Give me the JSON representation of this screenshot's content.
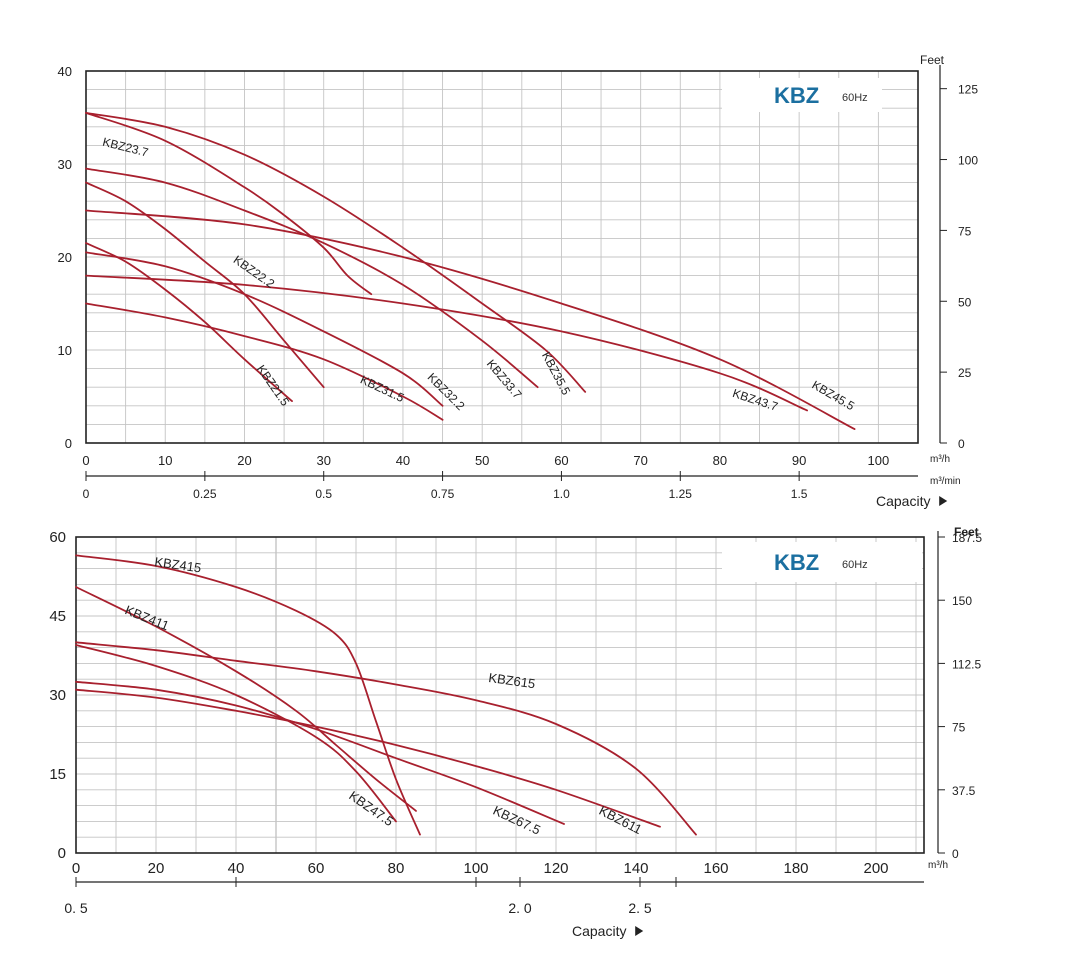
{
  "colors": {
    "curve": "#a8202e",
    "brand": "#1b6fa0",
    "grid": "#c4c4c4",
    "frame": "#222222"
  },
  "chart_data": [
    {
      "type": "line",
      "brand": "KBZ",
      "frequency": "60Hz",
      "xlim": [
        0,
        105
      ],
      "ylim": [
        0,
        40
      ],
      "yticks": [
        "0",
        "10",
        "20",
        "30",
        "40"
      ],
      "xticks": [
        "0",
        "10",
        "20",
        "30",
        "40",
        "50",
        "60",
        "70",
        "80",
        "90",
        "100"
      ],
      "x_unit": "m³/h",
      "x2_unit": "m³/min",
      "x2_ticks": [
        "0",
        "0.25",
        "0.5",
        "0.75",
        "1.0",
        "1.25",
        "1.5"
      ],
      "x2_tick_values": [
        0,
        0.25,
        0.5,
        0.75,
        1.0,
        1.25,
        1.5
      ],
      "xlabel": "Capacity",
      "y2_unit": "Feet",
      "y2_ticks": [
        "0",
        "25",
        "50",
        "75",
        "100",
        "125"
      ],
      "y2_tick_values": [
        0,
        25,
        50,
        75,
        100,
        125
      ],
      "series": [
        {
          "name": "KBZ23.7",
          "x": [
            0,
            10,
            20,
            25,
            30,
            33,
            36
          ],
          "y": [
            35.5,
            32.5,
            27.5,
            24.5,
            21,
            18,
            16
          ]
        },
        {
          "name": "KBZ22.2",
          "x": [
            0,
            5,
            10,
            15,
            20,
            25,
            30
          ],
          "y": [
            28,
            26,
            23,
            19.5,
            16,
            11,
            6
          ]
        },
        {
          "name": "KBZ21.5",
          "x": [
            0,
            5,
            10,
            15,
            20,
            26
          ],
          "y": [
            21.5,
            19.5,
            16.5,
            13,
            9,
            4.5
          ]
        },
        {
          "name": "KBZ31.5",
          "x": [
            0,
            10,
            20,
            30,
            40,
            45
          ],
          "y": [
            15,
            13.5,
            11.5,
            9,
            5,
            2.5
          ]
        },
        {
          "name": "KBZ32.2",
          "x": [
            0,
            10,
            20,
            30,
            40,
            45
          ],
          "y": [
            20.5,
            19,
            16,
            12,
            7.5,
            4
          ]
        },
        {
          "name": "KBZ33.7",
          "x": [
            0,
            10,
            20,
            30,
            40,
            50,
            57
          ],
          "y": [
            29.5,
            28,
            25,
            21.5,
            17,
            11,
            6
          ]
        },
        {
          "name": "KBZ35.5",
          "x": [
            0,
            10,
            20,
            30,
            40,
            50,
            58,
            63
          ],
          "y": [
            35.5,
            34,
            31,
            26.5,
            21,
            15,
            10,
            5.5
          ]
        },
        {
          "name": "KBZ43.7",
          "x": [
            0,
            20,
            40,
            60,
            80,
            91
          ],
          "y": [
            18,
            17,
            15,
            12,
            7.5,
            3.5
          ]
        },
        {
          "name": "KBZ45.5",
          "x": [
            0,
            20,
            40,
            60,
            80,
            97
          ],
          "y": [
            25,
            23.5,
            20,
            15,
            9,
            1.5
          ]
        }
      ],
      "curve_labels": [
        {
          "text": "KBZ23.7",
          "series": "KBZ23.7",
          "at_x": 2,
          "at_y": 32,
          "angle": 14
        },
        {
          "text": "KBZ22.2",
          "series": "KBZ22.2",
          "at_x": 18.5,
          "at_y": 19.5,
          "angle": 35
        },
        {
          "text": "KBZ21.5",
          "series": "KBZ21.5",
          "at_x": 21.5,
          "at_y": 8,
          "angle": 55
        },
        {
          "text": "KBZ31.5",
          "series": "KBZ31.5",
          "at_x": 34.5,
          "at_y": 6.5,
          "angle": 25
        },
        {
          "text": "KBZ32.2",
          "series": "KBZ32.2",
          "at_x": 43,
          "at_y": 7,
          "angle": 45
        },
        {
          "text": "KBZ33.7",
          "series": "KBZ33.7",
          "at_x": 50.5,
          "at_y": 8.5,
          "angle": 50
        },
        {
          "text": "KBZ35.5",
          "series": "KBZ35.5",
          "at_x": 57.5,
          "at_y": 9.5,
          "angle": 62
        },
        {
          "text": "KBZ43.7",
          "series": "KBZ43.7",
          "at_x": 81.5,
          "at_y": 5,
          "angle": 18
        },
        {
          "text": "KBZ45.5",
          "series": "KBZ45.5",
          "at_x": 91.5,
          "at_y": 6,
          "angle": 30
        }
      ]
    },
    {
      "type": "line",
      "brand": "KBZ",
      "frequency": "60Hz",
      "xlim": [
        0,
        212
      ],
      "ylim": [
        0,
        60
      ],
      "yticks": [
        "0",
        "15",
        "30",
        "45",
        "60"
      ],
      "xticks": [
        "0",
        "20",
        "40",
        "60",
        "80",
        "100",
        "120",
        "140",
        "160",
        "180",
        "200"
      ],
      "x_unit": "m³/h",
      "x2_ticks": [
        "0. 5",
        "2. 0",
        "2. 5"
      ],
      "x2_tick_values": [
        0,
        111,
        141
      ],
      "xlabel": "Capacity",
      "y2_unit": "Feet",
      "y2_ticks": [
        "0",
        "37.5",
        "75",
        "112.5",
        "150",
        "187.5"
      ],
      "y2_tick_values": [
        0,
        37.5,
        75,
        112.5,
        150,
        187.5
      ],
      "series": [
        {
          "name": "KBZ415",
          "x": [
            0,
            20,
            40,
            55,
            65,
            70,
            75,
            80,
            86
          ],
          "y": [
            56.5,
            54.5,
            50.5,
            46,
            41.5,
            36,
            25,
            14,
            3.5
          ]
        },
        {
          "name": "KBZ411",
          "x": [
            0,
            20,
            40,
            55,
            65,
            75,
            85
          ],
          "y": [
            50.5,
            43,
            34.5,
            27,
            20.5,
            14,
            8
          ]
        },
        {
          "name": "KBZ47.5",
          "x": [
            0,
            20,
            40,
            60,
            70,
            80
          ],
          "y": [
            39.5,
            35.5,
            30,
            22,
            15.5,
            6
          ]
        },
        {
          "name": "KBZ67.5",
          "x": [
            0,
            20,
            40,
            60,
            80,
            100,
            122
          ],
          "y": [
            32.5,
            31,
            28,
            23.5,
            18,
            12.5,
            5.5
          ]
        },
        {
          "name": "KBZ611",
          "x": [
            0,
            20,
            40,
            60,
            80,
            100,
            120,
            146
          ],
          "y": [
            31,
            29.5,
            27,
            24,
            20.5,
            16.5,
            12,
            5
          ]
        },
        {
          "name": "KBZ615",
          "x": [
            0,
            20,
            40,
            60,
            80,
            100,
            120,
            140,
            155
          ],
          "y": [
            40,
            38.5,
            36.5,
            34.5,
            32,
            29,
            24.5,
            16,
            3.5
          ]
        }
      ],
      "curve_labels": [
        {
          "text": "KBZ415",
          "series": "KBZ415",
          "at_x": 19.5,
          "at_y": 54.5,
          "angle": 8
        },
        {
          "text": "KBZ411",
          "series": "KBZ411",
          "at_x": 12,
          "at_y": 45.5,
          "angle": 22
        },
        {
          "text": "KBZ615",
          "series": "KBZ615",
          "at_x": 103,
          "at_y": 32.5,
          "angle": 8
        },
        {
          "text": "KBZ47.5",
          "series": "KBZ47.5",
          "at_x": 68,
          "at_y": 10.5,
          "angle": 35
        },
        {
          "text": "KBZ67.5",
          "series": "KBZ67.5",
          "at_x": 104,
          "at_y": 7.5,
          "angle": 25
        },
        {
          "text": "KBZ611",
          "series": "KBZ611",
          "at_x": 130.5,
          "at_y": 7.5,
          "angle": 27
        }
      ]
    }
  ]
}
